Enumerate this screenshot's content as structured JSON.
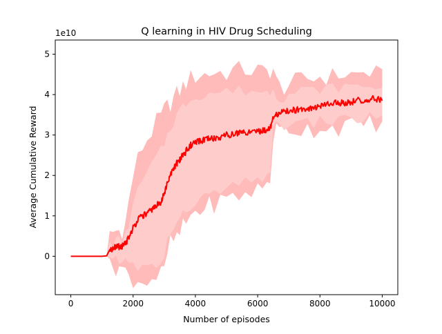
{
  "chart_data": {
    "type": "line",
    "title": "Q learning in HIV Drug Scheduling",
    "xlabel": "Number of episodes",
    "ylabel": "Average Cumulative Reward",
    "y_multiplier_label": "1e10",
    "xlim": [
      -500,
      10500
    ],
    "ylim": [
      -0.95,
      5.35
    ],
    "x_ticks": [
      0,
      2000,
      4000,
      6000,
      8000,
      10000
    ],
    "y_ticks": [
      0,
      1,
      2,
      3,
      4,
      5
    ],
    "grid": false,
    "legend": "none",
    "colors": {
      "mean_line": "#ff0000",
      "outer_band": "#ffb3b3",
      "inner_band": "#ffcccc"
    },
    "x": [
      0,
      250,
      500,
      750,
      1000,
      1150,
      1250,
      1350,
      1450,
      1550,
      1650,
      1750,
      1850,
      2000,
      2150,
      2300,
      2450,
      2600,
      2750,
      2900,
      3000,
      3100,
      3200,
      3300,
      3400,
      3500,
      3600,
      3700,
      3850,
      4000,
      4150,
      4300,
      4450,
      4600,
      4800,
      5000,
      5200,
      5400,
      5600,
      5800,
      6000,
      6150,
      6300,
      6400,
      6500,
      6600,
      6700,
      6850,
      7000,
      7200,
      7400,
      7600,
      7800,
      8000,
      8200,
      8400,
      8600,
      8800,
      9000,
      9200,
      9400,
      9600,
      9800,
      10000
    ],
    "series": [
      {
        "values": [
          0,
          0,
          0,
          0,
          0,
          0.01,
          0.1,
          0.2,
          0.22,
          0.23,
          0.25,
          0.3,
          0.45,
          0.7,
          0.9,
          1.0,
          1.05,
          1.15,
          1.25,
          1.35,
          1.55,
          1.8,
          2.0,
          2.15,
          2.3,
          2.4,
          2.5,
          2.6,
          2.75,
          2.8,
          2.85,
          2.88,
          2.9,
          2.92,
          2.95,
          3.0,
          3.02,
          3.05,
          3.05,
          3.08,
          3.1,
          3.1,
          3.15,
          3.2,
          3.4,
          3.5,
          3.55,
          3.58,
          3.6,
          3.62,
          3.65,
          3.65,
          3.68,
          3.7,
          3.75,
          3.78,
          3.8,
          3.8,
          3.82,
          3.85,
          3.85,
          3.88,
          3.9,
          3.85
        ]
      },
      {
        "values": [
          0,
          0,
          0,
          0,
          0,
          0.02,
          0.5,
          0.6,
          0.62,
          0.64,
          0.66,
          0.8,
          1.3,
          2.0,
          2.4,
          2.7,
          2.9,
          3.1,
          3.3,
          3.45,
          3.6,
          3.7,
          3.8,
          3.9,
          4.0,
          4.1,
          4.2,
          4.3,
          4.4,
          4.45,
          4.5,
          4.5,
          4.52,
          4.55,
          4.55,
          4.55,
          4.6,
          4.6,
          4.62,
          4.6,
          4.6,
          4.55,
          4.55,
          4.6,
          4.65,
          4.3,
          4.2,
          4.2,
          4.25,
          4.3,
          4.35,
          4.4,
          4.4,
          4.45,
          4.45,
          4.45,
          4.5,
          4.5,
          4.5,
          4.5,
          4.55,
          4.55,
          4.5,
          4.4
        ]
      },
      {
        "values": [
          0,
          0,
          0,
          0,
          0,
          0,
          -0.3,
          -0.25,
          -0.25,
          -0.25,
          -0.3,
          -0.4,
          -0.5,
          -0.55,
          -0.6,
          -0.6,
          -0.6,
          -0.55,
          -0.5,
          -0.45,
          -0.4,
          0.1,
          0.3,
          0.4,
          0.45,
          0.55,
          0.7,
          0.85,
          1.0,
          1.1,
          1.15,
          1.2,
          1.25,
          1.3,
          1.35,
          1.4,
          1.45,
          1.5,
          1.55,
          1.6,
          1.65,
          1.7,
          1.8,
          1.9,
          3.0,
          3.1,
          3.1,
          3.15,
          3.15,
          3.15,
          3.15,
          3.15,
          3.15,
          3.2,
          3.2,
          3.2,
          3.2,
          3.25,
          3.25,
          3.25,
          3.25,
          3.3,
          3.3,
          3.3
        ]
      },
      {
        "values": [
          0,
          0,
          0,
          0,
          0,
          0.01,
          0.3,
          0.35,
          0.36,
          0.37,
          0.38,
          0.5,
          0.8,
          1.3,
          1.6,
          1.85,
          2.05,
          2.25,
          2.45,
          2.6,
          2.8,
          3.0,
          3.2,
          3.35,
          3.5,
          3.6,
          3.7,
          3.8,
          3.9,
          3.95,
          4.0,
          4.0,
          4.05,
          4.05,
          4.05,
          4.1,
          4.1,
          4.1,
          4.1,
          4.1,
          4.1,
          4.05,
          4.05,
          4.1,
          4.2,
          4.0,
          3.95,
          3.95,
          4.0,
          4.05,
          4.1,
          4.1,
          4.1,
          4.15,
          4.15,
          4.15,
          4.2,
          4.2,
          4.2,
          4.2,
          4.2,
          4.25,
          4.2,
          4.1
        ]
      },
      {
        "values": [
          0,
          0,
          0,
          0,
          0,
          0,
          -0.1,
          -0.05,
          -0.05,
          -0.05,
          -0.1,
          -0.15,
          -0.2,
          -0.25,
          -0.3,
          -0.3,
          -0.3,
          -0.25,
          -0.2,
          -0.15,
          -0.1,
          0.4,
          0.6,
          0.7,
          0.8,
          0.9,
          1.0,
          1.1,
          1.25,
          1.35,
          1.4,
          1.45,
          1.5,
          1.55,
          1.6,
          1.65,
          1.7,
          1.75,
          1.8,
          1.85,
          1.9,
          1.95,
          2.05,
          2.15,
          3.1,
          3.2,
          3.25,
          3.25,
          3.25,
          3.25,
          3.3,
          3.3,
          3.3,
          3.35,
          3.35,
          3.35,
          3.35,
          3.4,
          3.4,
          3.4,
          3.4,
          3.45,
          3.45,
          3.45
        ]
      }
    ]
  }
}
